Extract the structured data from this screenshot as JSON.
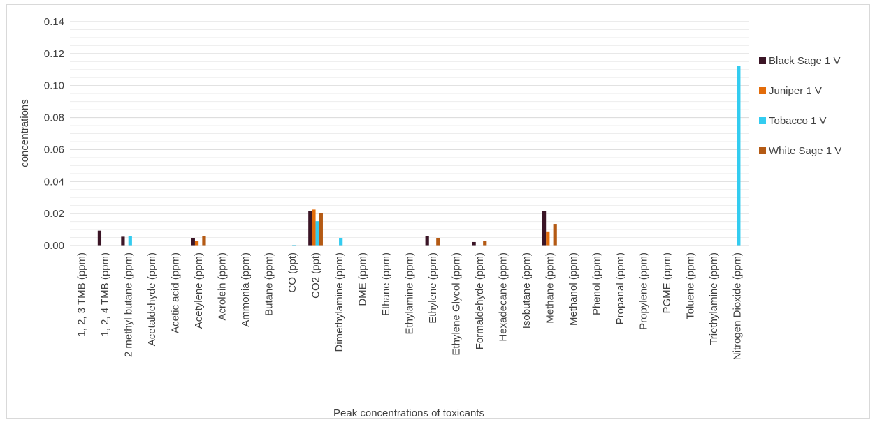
{
  "chart_data": {
    "type": "bar",
    "title": "",
    "xlabel": "Peak concentrations of toxicants",
    "ylabel": "concentrations",
    "ylim": [
      0,
      0.14
    ],
    "yticks": [
      "0.00",
      "0.02",
      "0.04",
      "0.06",
      "0.08",
      "0.10",
      "0.12",
      "0.14"
    ],
    "grid": true,
    "legend_position": "right",
    "categories": [
      "1, 2, 3  TMB  (ppm)",
      "1, 2, 4  TMB  (ppm)",
      "2  methyl  butane  (ppm)",
      "Acetaldehyde  (ppm)",
      "Acetic  acid  (ppm)",
      "Acetylene  (ppm)",
      "Acrolein  (ppm)",
      "Ammonia  (ppm)",
      "Butane  (ppm)",
      "CO  (ppt)",
      "CO2  (ppt)",
      "Dimethylamine  (ppm)",
      "DME  (ppm)",
      "Ethane  (ppm)",
      "Ethylamine  (ppm)",
      "Ethylene  (ppm)",
      "Ethylene  Glycol  (ppm)",
      "Formaldehyde  (ppm)",
      "Hexadecane  (ppm)",
      "Isobutane  (ppm)",
      "Methane  (ppm)",
      "Methanol  (ppm)",
      "Phenol  (ppm)",
      "Propanal  (ppm)",
      "Propylene  (ppm)",
      "PGME  (ppm)",
      "Toluene  (ppm)",
      "Triethylamine  (ppm)",
      "Nitrogen  Dioxide  (ppm)"
    ],
    "series": [
      {
        "name": "Black  Sage  1 V",
        "color": "#3b1526",
        "values": [
          0,
          0.0093,
          0.0055,
          0,
          0,
          0.0048,
          0,
          0,
          0,
          0,
          0.0215,
          0,
          0,
          0,
          0,
          0.0058,
          0,
          0.0022,
          0,
          0,
          0.0218,
          0,
          0,
          0,
          0,
          0,
          0,
          0,
          0
        ]
      },
      {
        "name": "Juniper  1 V",
        "color": "#e36c0a",
        "values": [
          0,
          0,
          0,
          0,
          0,
          0.0028,
          0,
          0,
          0,
          0,
          0.0225,
          0,
          0,
          0,
          0,
          0,
          0,
          0,
          0,
          0,
          0.0088,
          0,
          0,
          0,
          0,
          0,
          0,
          0,
          0
        ]
      },
      {
        "name": "Tobacco  1 V",
        "color": "#33ccf0",
        "values": [
          0,
          0,
          0.0058,
          0,
          0,
          0,
          0,
          0,
          0,
          0.0004,
          0.0152,
          0.0048,
          0,
          0,
          0,
          0,
          0,
          0,
          0,
          0,
          0,
          0,
          0,
          0,
          0,
          0,
          0,
          0,
          0.1123
        ]
      },
      {
        "name": "White  Sage  1 V",
        "color": "#b45a14",
        "values": [
          0,
          0,
          0,
          0,
          0,
          0.0058,
          0,
          0,
          0,
          0,
          0.0205,
          0,
          0,
          0,
          0,
          0.0048,
          0,
          0.0028,
          0,
          0,
          0.0135,
          0,
          0,
          0,
          0,
          0,
          0,
          0,
          0
        ]
      }
    ]
  }
}
